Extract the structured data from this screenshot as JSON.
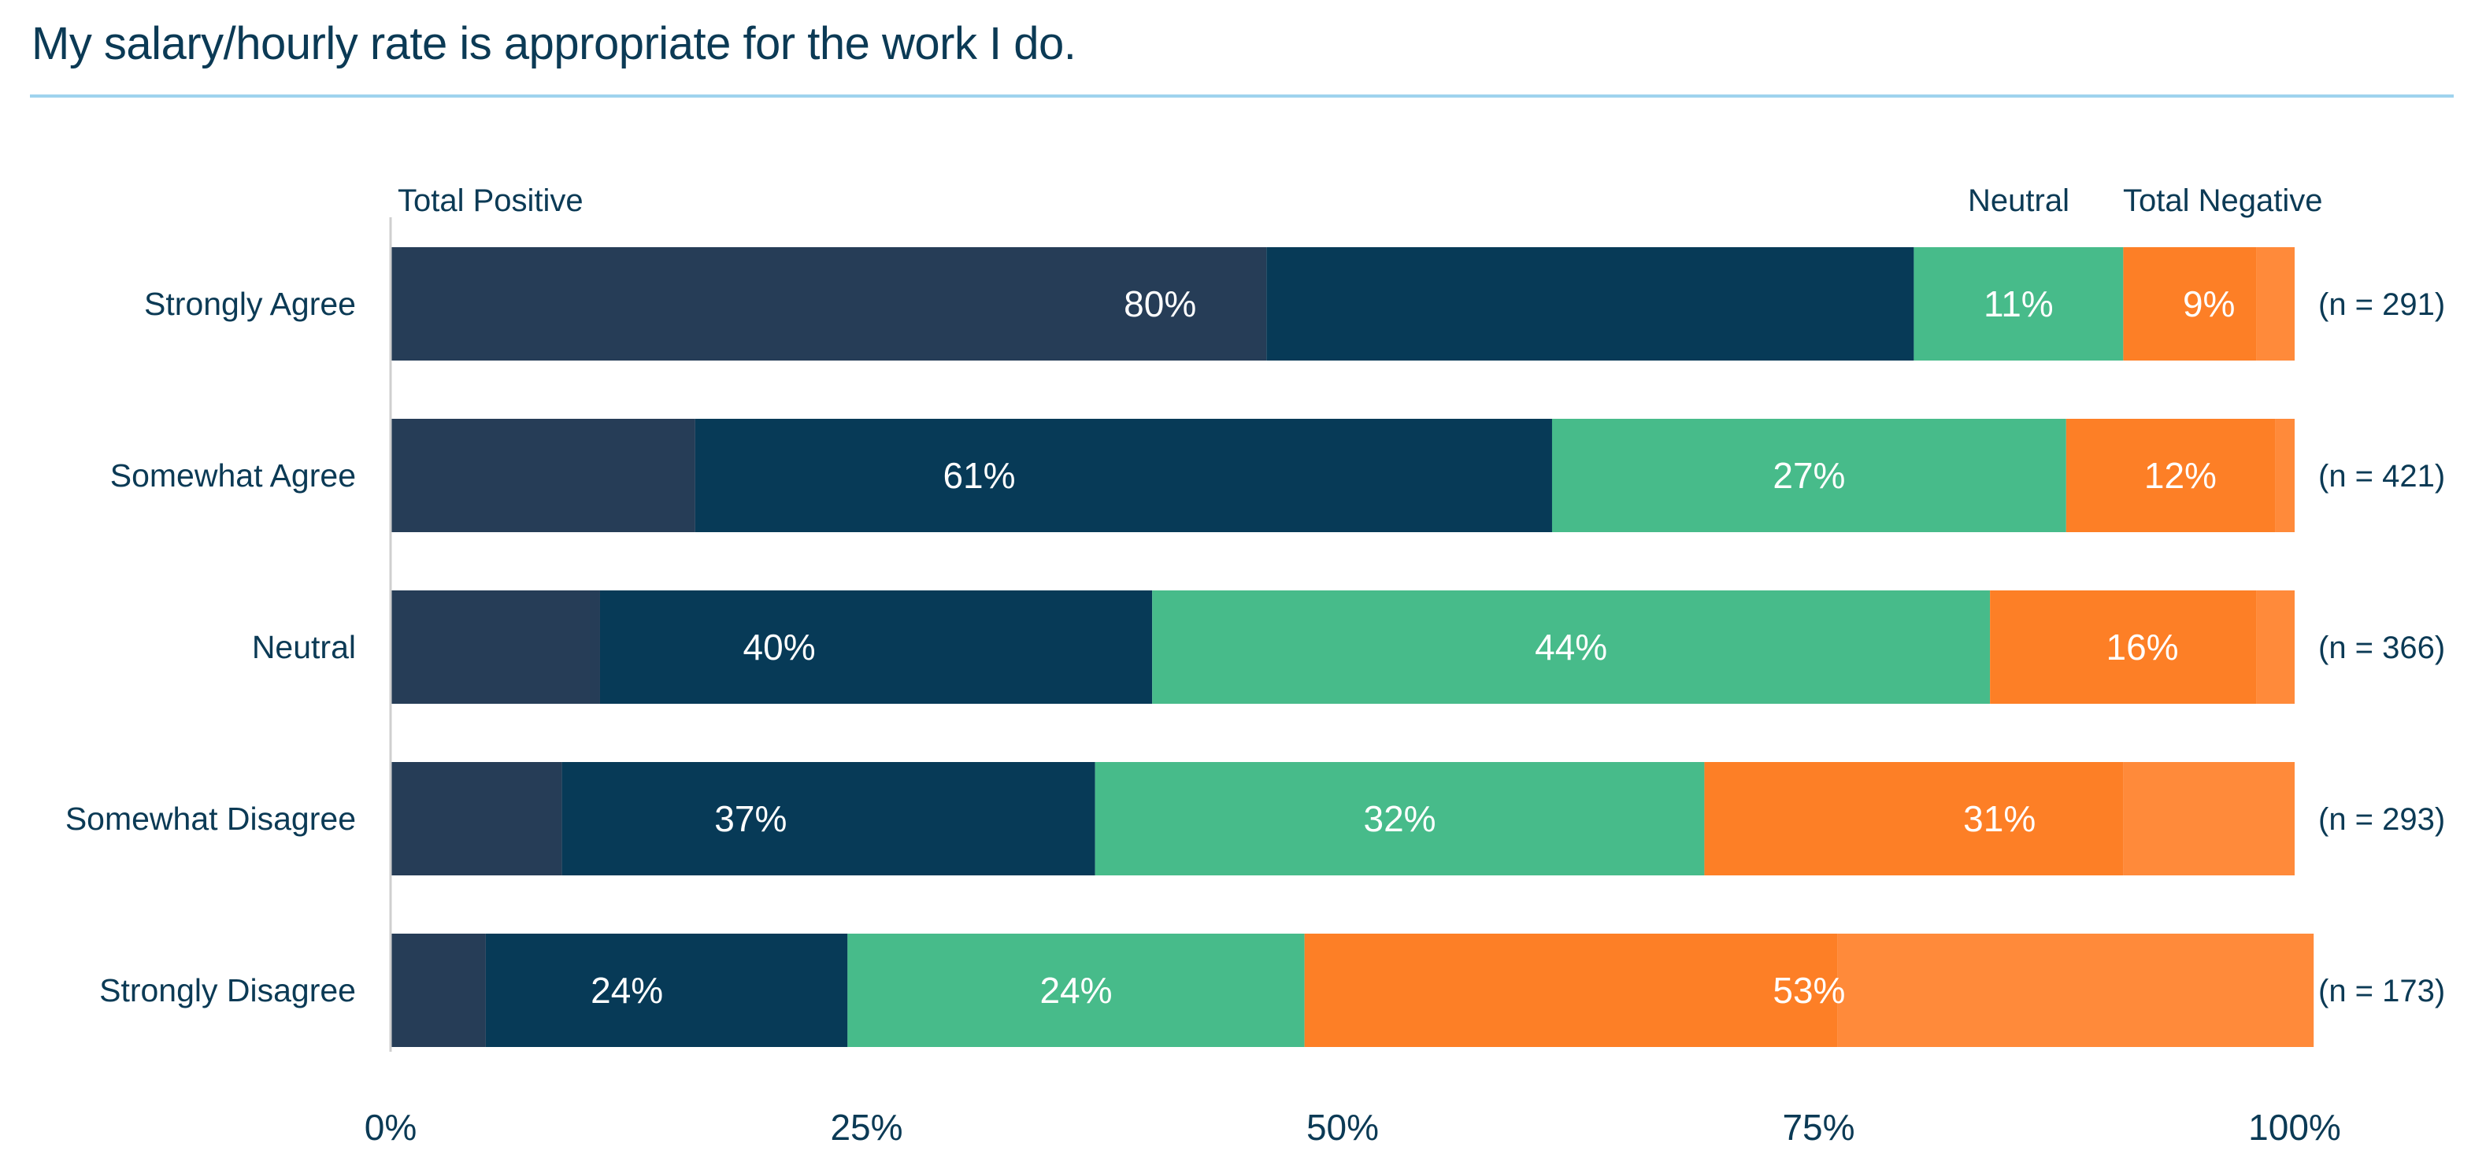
{
  "title": "My salary/hourly rate is appropriate for the work I do.",
  "colors": {
    "positive_dark": "#263d57",
    "positive": "#073a57",
    "neutral": "#47bb8a",
    "negative": "#fd7f26",
    "negative_light": "#ff8a3a",
    "title": "#0b3a55",
    "rule": "#9fd3ee",
    "axis": "#cfcfcf"
  },
  "chart_data": {
    "type": "bar",
    "orientation": "horizontal",
    "stacked": true,
    "header_labels": {
      "positive": "Total Positive",
      "neutral": "Neutral",
      "negative": "Total Negative"
    },
    "categories": [
      "Strongly Agree",
      "Somewhat Agree",
      "Neutral",
      "Somewhat Disagree",
      "Strongly Disagree"
    ],
    "n_labels": [
      "(n = 291)",
      "(n = 421)",
      "(n = 366)",
      "(n = 293)",
      "(n = 173)"
    ],
    "series": [
      {
        "key": "positive",
        "values": [
          80,
          61,
          40,
          37,
          24
        ],
        "labels": [
          "80%",
          "61%",
          "40%",
          "37%",
          "24%"
        ]
      },
      {
        "key": "neutral",
        "values": [
          11,
          27,
          44,
          32,
          24
        ],
        "labels": [
          "11%",
          "27%",
          "44%",
          "32%",
          "24%"
        ]
      },
      {
        "key": "negative",
        "values": [
          9,
          12,
          16,
          31,
          53
        ],
        "labels": [
          "9%",
          "12%",
          "16%",
          "31%",
          "53%"
        ]
      }
    ],
    "positive_strongly_agree_share": [
      46,
      16,
      11,
      9,
      5
    ],
    "negative_strongly_disagree_share": [
      2,
      1,
      2,
      9,
      25
    ],
    "xlim": [
      0,
      100
    ],
    "xticks": [
      0,
      25,
      50,
      75,
      100
    ],
    "xtick_labels": [
      "0%",
      "25%",
      "50%",
      "75%",
      "100%"
    ],
    "grid": false,
    "legend": "none"
  }
}
